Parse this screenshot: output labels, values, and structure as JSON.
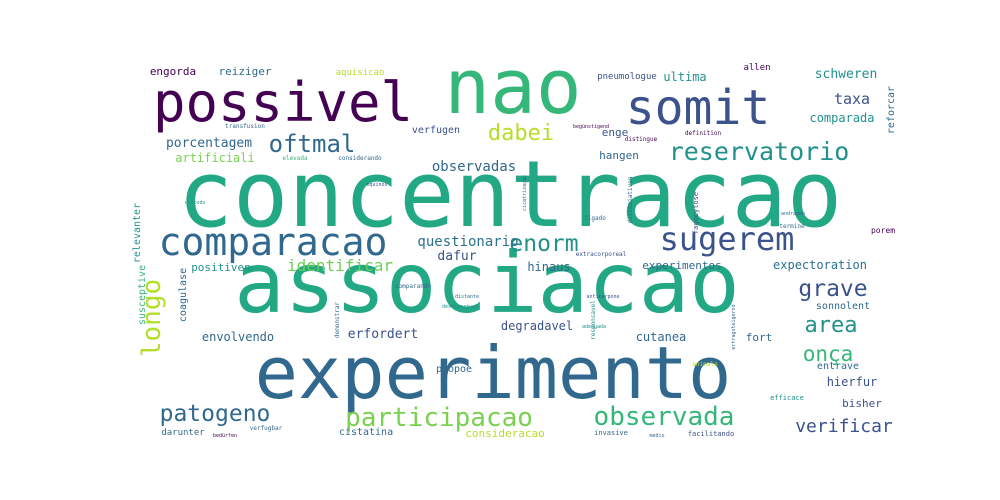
{
  "wordcloud": {
    "words": [
      {
        "text": "concentracao",
        "color": "#22a884",
        "weight": 1.0
      },
      {
        "text": "associacao",
        "color": "#22a884",
        "weight": 0.92
      },
      {
        "text": "experimento",
        "color": "#31688e",
        "weight": 0.86
      },
      {
        "text": "nao",
        "color": "#35b779",
        "weight": 0.78
      },
      {
        "text": "possivel",
        "color": "#440154",
        "weight": 0.62
      },
      {
        "text": "somit",
        "color": "#3b528b",
        "weight": 0.56
      },
      {
        "text": "comparacao",
        "color": "#31688e",
        "weight": 0.44
      },
      {
        "text": "sugerem",
        "color": "#3b528b",
        "weight": 0.36
      },
      {
        "text": "participacao",
        "color": "#7ad151",
        "weight": 0.34
      },
      {
        "text": "observada",
        "color": "#35b779",
        "weight": 0.33
      },
      {
        "text": "reservatorio",
        "color": "#21918c",
        "weight": 0.32
      },
      {
        "text": "patogeno",
        "color": "#31688e",
        "weight": 0.3
      },
      {
        "text": "longo",
        "color": "#b5de2b",
        "weight": 0.3
      },
      {
        "text": "oftmal",
        "color": "#31688e",
        "weight": 0.28
      },
      {
        "text": "dabei",
        "color": "#b5de2b",
        "weight": 0.28
      },
      {
        "text": "enorm",
        "color": "#21918c",
        "weight": 0.27
      },
      {
        "text": "grave",
        "color": "#3b528b",
        "weight": 0.26
      },
      {
        "text": "area",
        "color": "#21918c",
        "weight": 0.26
      },
      {
        "text": "onça",
        "color": "#35b779",
        "weight": 0.25
      },
      {
        "text": "verificar",
        "color": "#3b528b",
        "weight": 0.22
      },
      {
        "text": "identificar",
        "color": "#6ece58",
        "weight": 0.2
      },
      {
        "text": "questionario",
        "color": "#2c728e",
        "weight": 0.18
      },
      {
        "text": "observadas",
        "color": "#31688e",
        "weight": 0.18
      },
      {
        "text": "porcentagem",
        "color": "#31688e",
        "weight": 0.16
      },
      {
        "text": "artificiali",
        "color": "#7ad151",
        "weight": 0.14
      },
      {
        "text": "ultima",
        "color": "#21918c",
        "weight": 0.14
      },
      {
        "text": "taxa",
        "color": "#3b528b",
        "weight": 0.15
      },
      {
        "text": "schweren",
        "color": "#21918c",
        "weight": 0.14
      },
      {
        "text": "comparada",
        "color": "#21918c",
        "weight": 0.14
      },
      {
        "text": "reforcar",
        "color": "#31688e",
        "weight": 0.1
      },
      {
        "text": "expectoration",
        "color": "#2c728e",
        "weight": 0.14
      },
      {
        "text": "enge",
        "color": "#3b528b",
        "weight": 0.12
      },
      {
        "text": "hangen",
        "color": "#31688e",
        "weight": 0.12
      },
      {
        "text": "engorda",
        "color": "#440154",
        "weight": 0.13
      },
      {
        "text": "reiziger",
        "color": "#31688e",
        "weight": 0.12
      },
      {
        "text": "aquisicao",
        "color": "#b5de2b",
        "weight": 0.1
      },
      {
        "text": "allen",
        "color": "#440154",
        "weight": 0.1
      },
      {
        "text": "pneumologue",
        "color": "#3b528b",
        "weight": 0.09
      },
      {
        "text": "verfugen",
        "color": "#3b528b",
        "weight": 0.1
      },
      {
        "text": "dafur",
        "color": "#3b528b",
        "weight": 0.13
      },
      {
        "text": "hinaus",
        "color": "#31688e",
        "weight": 0.12
      },
      {
        "text": "experimentos",
        "color": "#31688e",
        "weight": 0.11
      },
      {
        "text": "positiven",
        "color": "#21918c",
        "weight": 0.11
      },
      {
        "text": "coagulase",
        "color": "#31688e",
        "weight": 0.1
      },
      {
        "text": "relevanter",
        "color": "#21918c",
        "weight": 0.1
      },
      {
        "text": "susceptive",
        "color": "#35b779",
        "weight": 0.1
      },
      {
        "text": "erfordert",
        "color": "#3b528b",
        "weight": 0.13
      },
      {
        "text": "envolvendo",
        "color": "#31688e",
        "weight": 0.12
      },
      {
        "text": "degradavel",
        "color": "#3b528b",
        "weight": 0.12
      },
      {
        "text": "cutanea",
        "color": "#31688e",
        "weight": 0.12
      },
      {
        "text": "fort",
        "color": "#31688e",
        "weight": 0.11
      },
      {
        "text": "entrave",
        "color": "#31688e",
        "weight": 0.1
      },
      {
        "text": "sonnolent",
        "color": "#31688e",
        "weight": 0.1
      },
      {
        "text": "porem",
        "color": "#440154",
        "weight": 0.08
      },
      {
        "text": "hierfur",
        "color": "#3b528b",
        "weight": 0.12
      },
      {
        "text": "bisher",
        "color": "#3b528b",
        "weight": 0.11
      },
      {
        "text": "propoe",
        "color": "#31688e",
        "weight": 0.1
      },
      {
        "text": "cistatina",
        "color": "#31688e",
        "weight": 0.1
      },
      {
        "text": "consideracao",
        "color": "#b5de2b",
        "weight": 0.11
      },
      {
        "text": "darunter",
        "color": "#31688e",
        "weight": 0.09
      },
      {
        "text": "invasive",
        "color": "#31688e",
        "weight": 0.07
      },
      {
        "text": "facilitando",
        "color": "#3b528b",
        "weight": 0.07
      },
      {
        "text": "efficace",
        "color": "#21918c",
        "weight": 0.07
      },
      {
        "text": "verfugbar",
        "color": "#31688e",
        "weight": 0.06
      },
      {
        "text": "fagocytose",
        "color": "#3b528b",
        "weight": 0.07
      },
      {
        "text": "dissoziativen",
        "color": "#31688e",
        "weight": 0.06
      },
      {
        "text": "fígado",
        "color": "#31688e",
        "weight": 0.06
      },
      {
        "text": "considerando",
        "color": "#31688e",
        "weight": 0.06
      },
      {
        "text": "elevada",
        "color": "#35b779",
        "weight": 0.06
      },
      {
        "text": "transfusion",
        "color": "#31688e",
        "weight": 0.06
      },
      {
        "text": "definition",
        "color": "#440154",
        "weight": 0.06
      },
      {
        "text": "distingue",
        "color": "#440154",
        "weight": 0.06
      },
      {
        "text": "comparando",
        "color": "#31688e",
        "weight": 0.06
      },
      {
        "text": "responsavel",
        "color": "#21918c",
        "weight": 0.05
      },
      {
        "text": "demonstrar",
        "color": "#31688e",
        "weight": 0.05
      },
      {
        "text": "animale",
        "color": "#b5de2b",
        "weight": 0.05
      },
      {
        "text": "termine",
        "color": "#31688e",
        "weight": 0.05
      },
      {
        "text": "cicatrização",
        "color": "#31688e",
        "weight": 0.05
      },
      {
        "text": "extracorporeal",
        "color": "#3b528b",
        "weight": 0.05
      },
      {
        "text": "andragen",
        "color": "#31688e",
        "weight": 0.05
      },
      {
        "text": "begünstigend",
        "color": "#440154",
        "weight": 0.05
      },
      {
        "text": "equinos",
        "color": "#3b528b",
        "weight": 0.05
      },
      {
        "text": "adequada",
        "color": "#21918c",
        "weight": 0.05
      },
      {
        "text": "distante",
        "color": "#31688e",
        "weight": 0.05
      },
      {
        "text": "crocodo",
        "color": "#21918c",
        "weight": 0.05
      },
      {
        "text": "ertragsteigernd",
        "color": "#31688e",
        "weight": 0.05
      },
      {
        "text": "anticarpone",
        "color": "#3b528b",
        "weight": 0.05
      },
      {
        "text": "desfavorável",
        "color": "#21918c",
        "weight": 0.05
      },
      {
        "text": "medio",
        "color": "#31688e",
        "weight": 0.05
      },
      {
        "text": "bedürfen",
        "color": "#440154",
        "weight": 0.05
      }
    ]
  }
}
